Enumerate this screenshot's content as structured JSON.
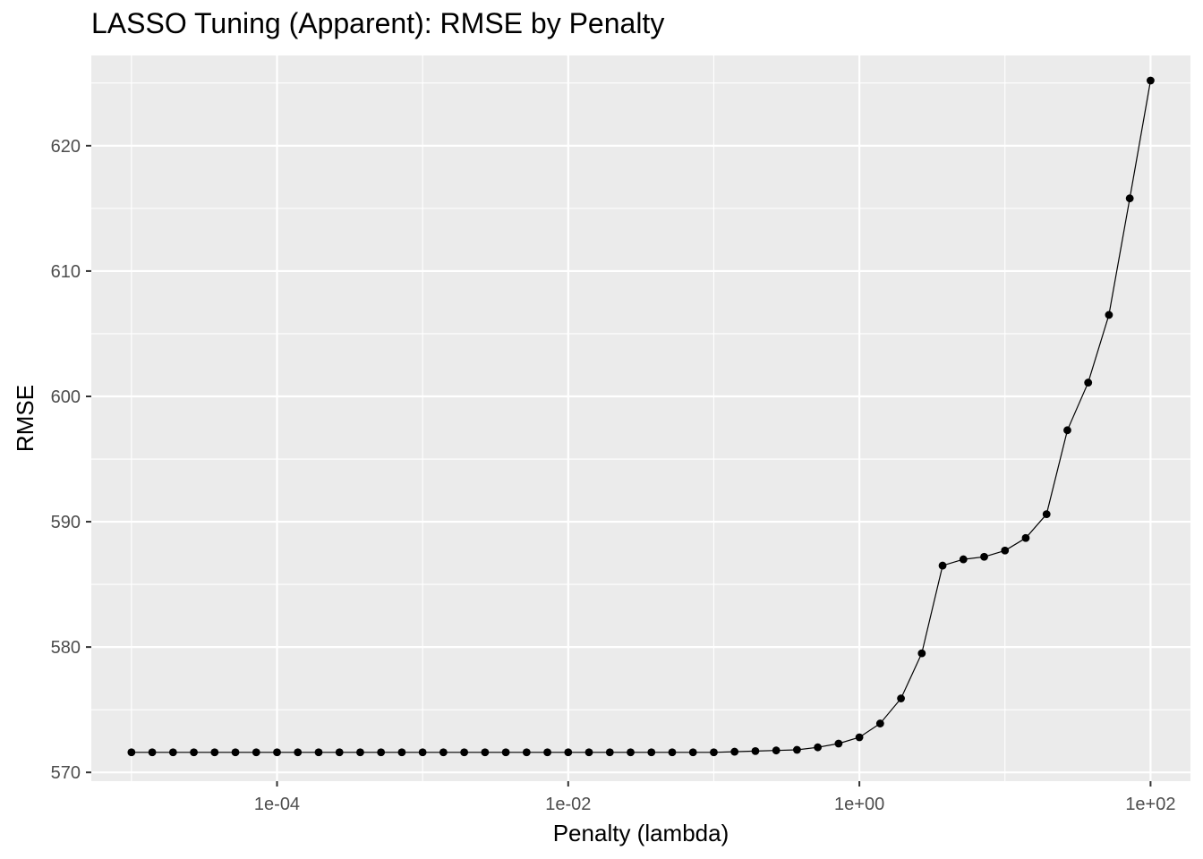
{
  "chart_data": {
    "type": "line",
    "title": "LASSO Tuning (Apparent): RMSE by Penalty",
    "xlabel": "Penalty (lambda)",
    "ylabel": "RMSE",
    "x_scale": "log10",
    "xlim": [
      5.3e-06,
      188
    ],
    "ylim": [
      569.3,
      627.2
    ],
    "x_ticks": [
      {
        "value": 0.0001,
        "label": "1e-04"
      },
      {
        "value": 0.01,
        "label": "1e-02"
      },
      {
        "value": 1,
        "label": "1e+00"
      },
      {
        "value": 100,
        "label": "1e+02"
      }
    ],
    "y_ticks": [
      {
        "value": 570,
        "label": "570"
      },
      {
        "value": 580,
        "label": "580"
      },
      {
        "value": 590,
        "label": "590"
      },
      {
        "value": 600,
        "label": "600"
      },
      {
        "value": 610,
        "label": "610"
      },
      {
        "value": 620,
        "label": "620"
      }
    ],
    "grid": true,
    "background": "#ebebeb",
    "grid_color": "#ffffff",
    "line_color": "#000000",
    "point_color": "#000000",
    "series": [
      {
        "x": [
          1e-05,
          1.389e-05,
          1.931e-05,
          2.683e-05,
          3.728e-05,
          5.179e-05,
          7.197e-05,
          0.0001,
          0.0001389,
          0.0001931,
          0.0002683,
          0.0003728,
          0.0005179,
          0.0007197,
          0.001,
          0.001389,
          0.001931,
          0.002683,
          0.003728,
          0.005179,
          0.007197,
          0.01,
          0.01389,
          0.01931,
          0.02683,
          0.03728,
          0.05179,
          0.07197,
          0.1,
          0.1389,
          0.1931,
          0.2683,
          0.3728,
          0.5179,
          0.7197,
          1,
          1.389,
          1.931,
          2.683,
          3.728,
          5.179,
          7.197,
          10,
          13.89,
          19.31,
          26.83,
          37.28,
          51.79,
          71.97,
          100
        ],
        "y": [
          571.6,
          571.6,
          571.6,
          571.6,
          571.6,
          571.6,
          571.6,
          571.6,
          571.6,
          571.6,
          571.6,
          571.6,
          571.6,
          571.6,
          571.6,
          571.6,
          571.6,
          571.6,
          571.6,
          571.6,
          571.6,
          571.6,
          571.6,
          571.6,
          571.6,
          571.6,
          571.6,
          571.6,
          571.6,
          571.65,
          571.7,
          571.75,
          571.8,
          572.0,
          572.3,
          572.8,
          573.9,
          575.9,
          579.5,
          586.5,
          587.0,
          587.2,
          587.7,
          588.7,
          590.6,
          597.3,
          601.1,
          606.5,
          615.8,
          625.2
        ]
      }
    ]
  }
}
